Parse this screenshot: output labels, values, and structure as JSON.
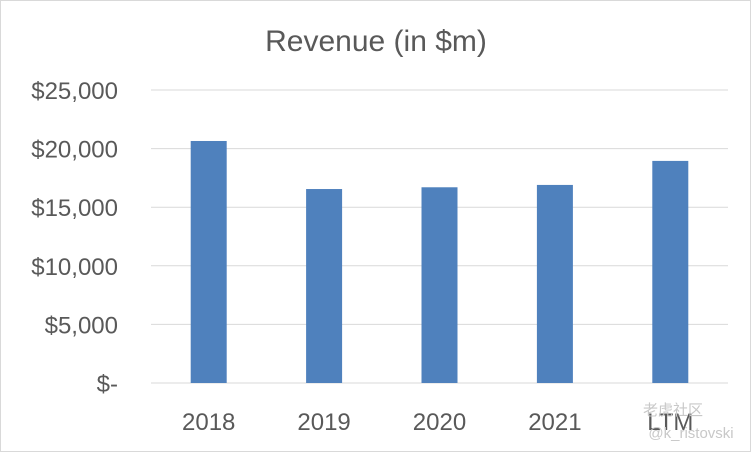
{
  "chart_data": {
    "type": "bar",
    "title": "Revenue (in $m)",
    "categories": [
      "2018",
      "2019",
      "2020",
      "2021",
      "LTM"
    ],
    "series": [
      {
        "values": [
          20650,
          16550,
          16700,
          16900,
          18950
        ]
      }
    ],
    "ylim": [
      0,
      25000
    ],
    "yticks": [
      0,
      5000,
      10000,
      15000,
      20000,
      25000
    ],
    "ytick_labels": [
      "$-",
      "$5,000",
      "$10,000",
      "$15,000",
      "$20,000",
      "$25,000"
    ],
    "xlabel": "",
    "ylabel": "",
    "grid": true,
    "legend": "none",
    "bar_color": "#4f81bd",
    "grid_color": "#d9d9d9",
    "text_color": "#595959"
  },
  "watermark": {
    "line1": "老虎社区",
    "line2": "@k_ristovski"
  }
}
